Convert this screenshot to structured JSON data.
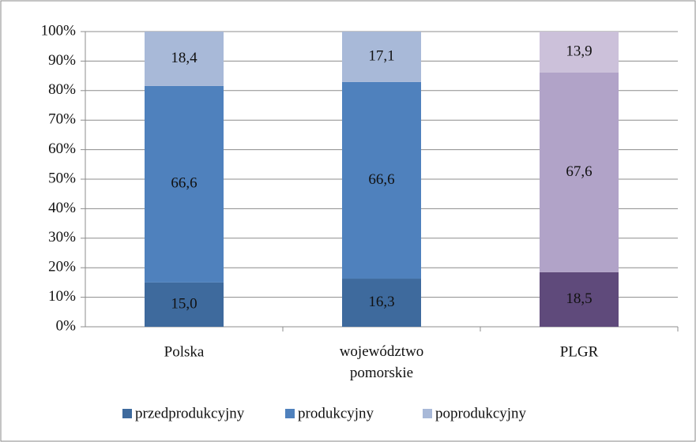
{
  "chart_data": {
    "type": "stacked_bar",
    "categories": [
      "Polska",
      "województwo pomorskie",
      "PLGR"
    ],
    "series": [
      {
        "name": "przedprodukcyjny",
        "color": "#3E6A9D",
        "point_colors": [
          "#3E6A9D",
          "#3E6A9D",
          "#5F4A7B"
        ],
        "values": [
          15.0,
          16.3,
          18.5
        ],
        "value_labels": [
          "15,0",
          "16,3",
          "18,5"
        ]
      },
      {
        "name": "produkcyjny",
        "color": "#4F81BD",
        "point_colors": [
          "#4F81BD",
          "#4F81BD",
          "#B1A3C8"
        ],
        "values": [
          66.6,
          66.6,
          67.6
        ],
        "value_labels": [
          "66,6",
          "66,6",
          "67,6"
        ]
      },
      {
        "name": "poprodukcyjny",
        "color": "#A8B9D8",
        "point_colors": [
          "#A8B9D8",
          "#A8B9D8",
          "#CCC1DA"
        ],
        "values": [
          18.4,
          17.1,
          13.9
        ],
        "value_labels": [
          "18,4",
          "17,1",
          "13,9"
        ]
      }
    ],
    "ylim": [
      0,
      100
    ],
    "yticks": [
      {
        "value": 0,
        "label": "0%"
      },
      {
        "value": 10,
        "label": "10%"
      },
      {
        "value": 20,
        "label": "20%"
      },
      {
        "value": 30,
        "label": "30%"
      },
      {
        "value": 40,
        "label": "40%"
      },
      {
        "value": 50,
        "label": "50%"
      },
      {
        "value": 60,
        "label": "60%"
      },
      {
        "value": 70,
        "label": "70%"
      },
      {
        "value": 80,
        "label": "80%"
      },
      {
        "value": 90,
        "label": "90%"
      },
      {
        "value": 100,
        "label": "100%"
      }
    ],
    "grid": true,
    "legend": "bottom"
  }
}
